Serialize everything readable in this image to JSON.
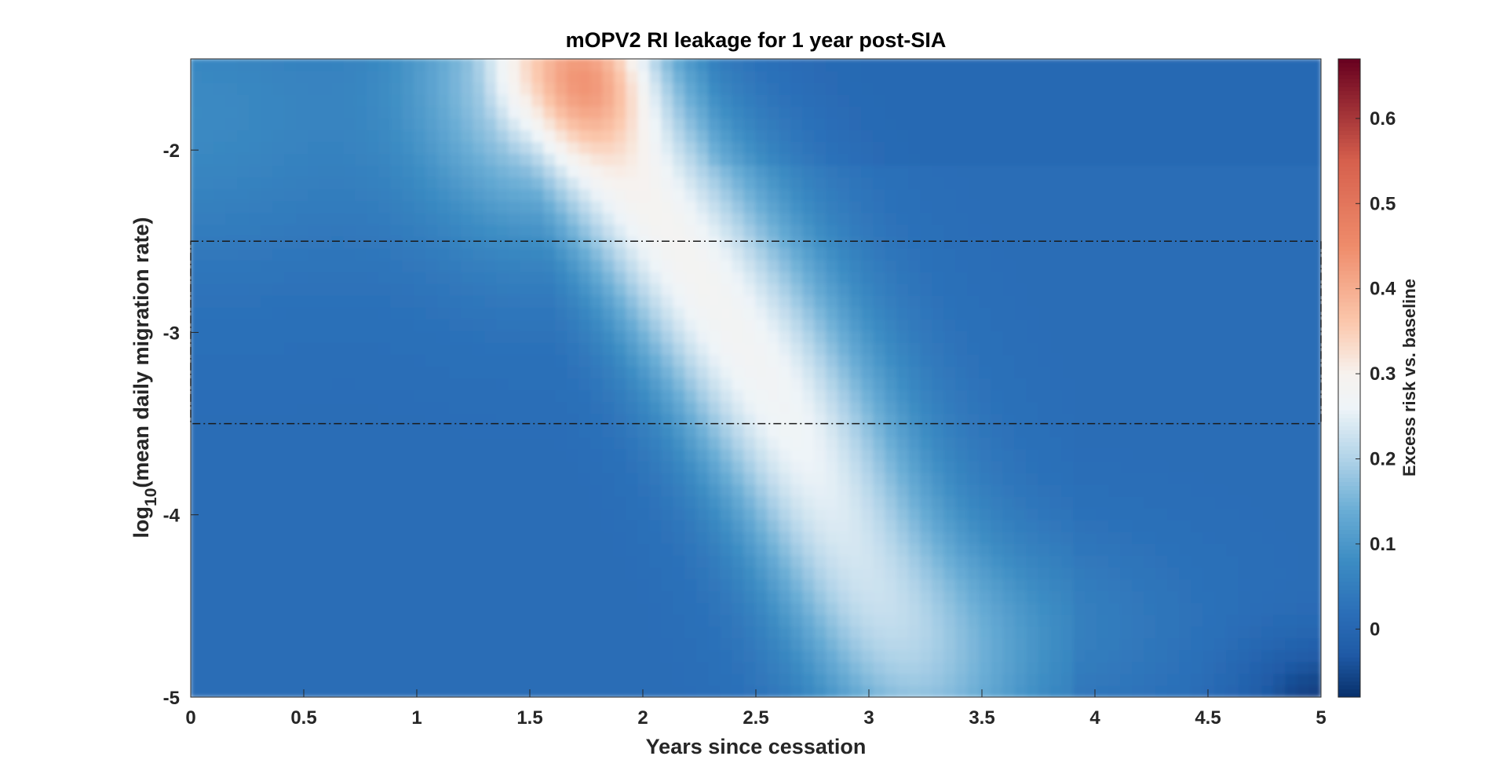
{
  "chart_data": {
    "type": "heatmap",
    "title": "mOPV2 RI leakage for 1 year post-SIA",
    "xlabel": "Years since cessation",
    "ylabel": {
      "prefix": "log",
      "subscript": "10",
      "suffix": "(mean daily migration rate)"
    },
    "xlim": [
      0,
      5
    ],
    "ylim": [
      -5,
      -1.5
    ],
    "xticks": [
      0,
      0.5,
      1,
      1.5,
      2,
      2.5,
      3,
      3.5,
      4,
      4.5,
      5
    ],
    "xtick_labels": [
      "0",
      "0.5",
      "1",
      "1.5",
      "2",
      "2.5",
      "3",
      "3.5",
      "4",
      "4.5",
      "5"
    ],
    "yticks": [
      -5,
      -4,
      -3,
      -2
    ],
    "ytick_labels": [
      "-5",
      "-4",
      "-3",
      "-2"
    ],
    "colorbar": {
      "label": "Excess risk vs. baseline",
      "range": [
        -0.08,
        0.67
      ],
      "ticks": [
        0,
        0.1,
        0.2,
        0.3,
        0.4,
        0.5,
        0.6
      ],
      "tick_labels": [
        "0",
        "0.1",
        "0.2",
        "0.3",
        "0.4",
        "0.5",
        "0.6"
      ],
      "colormap": [
        {
          "v": -0.08,
          "color": "#08306b"
        },
        {
          "v": -0.03,
          "color": "#1f5aa6"
        },
        {
          "v": 0.02,
          "color": "#2b6fb8"
        },
        {
          "v": 0.08,
          "color": "#3c8cc3"
        },
        {
          "v": 0.14,
          "color": "#6aadd5"
        },
        {
          "v": 0.2,
          "color": "#b0d3e8"
        },
        {
          "v": 0.26,
          "color": "#eef4f8"
        },
        {
          "v": 0.3,
          "color": "#f7f2ee"
        },
        {
          "v": 0.36,
          "color": "#fbc8ad"
        },
        {
          "v": 0.45,
          "color": "#ef8c6b"
        },
        {
          "v": 0.55,
          "color": "#d6604d"
        },
        {
          "v": 0.67,
          "color": "#67001f"
        }
      ]
    },
    "surface_peaks": [
      {
        "x": 1.75,
        "y": -1.6,
        "value": 0.42,
        "sx": 0.22,
        "sy": 0.35,
        "note": "red maximum"
      },
      {
        "x_ridge_start": 1.5,
        "y_ridge_start": -1.5,
        "x_ridge_end": 3.1,
        "y_ridge_end": -4.0,
        "value": 0.26
      }
    ],
    "highlight_band": {
      "y_from": -3.5,
      "y_to": -2.5,
      "x_from": 0,
      "x_to": 5,
      "style": "dash-dot"
    },
    "grid": false,
    "legend": "none"
  }
}
